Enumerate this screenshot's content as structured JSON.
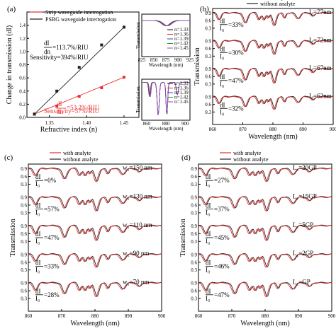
{
  "chart_data": [
    {
      "panel": "(a)",
      "type": "scatter",
      "xlabel": "Refractive index (n)",
      "ylabel": "Change in transmission (dI)",
      "xlim": [
        1.32,
        1.47
      ],
      "ylim": [
        0,
        1.6
      ],
      "xticks": [
        "1.35",
        "1.40",
        "1.45"
      ],
      "yticks": [
        "0.0",
        "0.2",
        "0.4",
        "0.6",
        "0.8",
        "1.0",
        "1.2",
        "1.4"
      ],
      "series": [
        {
          "name": "Strip waveguide interrogation",
          "color": "#e83030",
          "x": [
            1.33,
            1.36,
            1.39,
            1.42,
            1.45
          ],
          "y": [
            0.05,
            0.17,
            0.32,
            0.45,
            0.61
          ]
        },
        {
          "name": "PSBG waveguide interrogation",
          "color": "#222222",
          "x": [
            1.33,
            1.36,
            1.39,
            1.42,
            1.45
          ],
          "y": [
            0.05,
            0.4,
            0.76,
            1.1,
            1.37
          ]
        }
      ],
      "annotations": [
        {
          "text": "dI",
          "color": "#000000"
        },
        {
          "text": "dn",
          "color": "#000000"
        },
        {
          "text": "=113.7%/RIU",
          "color": "#000000"
        },
        {
          "text": "Sensitivity=394%/RIU",
          "color": "#000000"
        },
        {
          "text": "dI",
          "color": "#e83030"
        },
        {
          "text": "dn",
          "color": "#e83030"
        },
        {
          "text": "=53.2%/RIU",
          "color": "#e83030"
        },
        {
          "text": "Sensitivity=57%/RIU",
          "color": "#e83030"
        }
      ],
      "insets": [
        {
          "ylabel": "Transmission",
          "xlabel": "Wavelength (nm)",
          "xticks": [
            "825",
            "850",
            "875",
            "900",
            "925"
          ],
          "legend": [
            "n=1.33",
            "n=1.36",
            "n=1.39",
            "n=1.42",
            "n=1.45"
          ],
          "legend_colors": [
            "#111111",
            "#e83030",
            "#3040d0",
            "#2aa02a",
            "#a040c0"
          ]
        },
        {
          "ylabel": "Transmission",
          "xlabel": "Wavelength (nm)",
          "xticks": [
            "860",
            "880",
            "900"
          ],
          "legend": [
            "n=1.33",
            "n=1.36",
            "n=1.39",
            "n=1.42",
            "n=1.45"
          ],
          "legend_colors": [
            "#111111",
            "#e83030",
            "#3040d0",
            "#2aa02a",
            "#a040c0"
          ]
        }
      ]
    },
    {
      "panel": "(b)",
      "type": "line",
      "xlabel": "Wavelength (nm)",
      "ylabel": "Transmission",
      "xlim": [
        860,
        900
      ],
      "xticks": [
        "860",
        "870",
        "880",
        "890",
        "900"
      ],
      "yticks": [
        "0.9",
        "0.6",
        "0.3"
      ],
      "legend": [
        "with analyte",
        "without analyte"
      ],
      "legend_colors": [
        "#e83030",
        "#222222"
      ],
      "sub_labels": [
        "Iₑ=77nm",
        "Iₑ=72nm",
        "Iₑ=67nm",
        "Iₑ=62nm"
      ],
      "sub_labels_raw": [
        {
          "sym": "I",
          "sub": "d",
          "val": "=77nm"
        },
        {
          "sym": "I",
          "sub": "d",
          "val": "=72nm"
        },
        {
          "sym": "I",
          "sub": "d",
          "val": "=67nm"
        },
        {
          "sym": "I",
          "sub": "d",
          "val": "=62nm"
        }
      ],
      "ratios": [
        "=33%",
        "=30%",
        "=47%",
        "=32%"
      ],
      "ratio_num": "dI",
      "ratio_den": "I₀"
    },
    {
      "panel": "(c)",
      "type": "line",
      "xlabel": "Wavelength (nm)",
      "ylabel": "Transmission",
      "xlim": [
        860,
        900
      ],
      "xticks": [
        "860",
        "870",
        "880",
        "890",
        "900"
      ],
      "yticks": [
        "0.9",
        "0.6",
        "0.3"
      ],
      "legend": [
        "with analyte",
        "without analyte"
      ],
      "legend_colors": [
        "#e83030",
        "#222222"
      ],
      "sub_labels_raw": [
        {
          "sym": "w",
          "sub": "1",
          "val": "=150 nm"
        },
        {
          "sym": "w",
          "sub": "1",
          "val": "=130 nm"
        },
        {
          "sym": "w",
          "sub": "1",
          "val": "=110 nm"
        },
        {
          "sym": "w",
          "sub": "1",
          "val": "=90 nm"
        },
        {
          "sym": "w",
          "sub": "1",
          "val": "=70 nm"
        }
      ],
      "ratios": [
        "=0%",
        "=57%",
        "=47%",
        "=33%",
        "=28%"
      ],
      "ratio_num": "dI",
      "ratio_den": "I₀"
    },
    {
      "panel": "(d)",
      "type": "line",
      "xlabel": "Wavelength (nm)",
      "ylabel": "Transmission",
      "xlim": [
        860,
        900
      ],
      "xticks": [
        "860",
        "870",
        "880",
        "890",
        "900"
      ],
      "yticks": [
        "0.9",
        "0.6",
        "0.3"
      ],
      "legend": [
        "with analyte",
        "without analyte"
      ],
      "legend_colors": [
        "#e83030",
        "#222222"
      ],
      "sub_labels_raw": [
        {
          "sym": "L",
          "sub": "c",
          "val": "=30GP"
        },
        {
          "sym": "L",
          "sub": "c",
          "val": "=15GP"
        },
        {
          "sym": "L",
          "sub": "c",
          "val": "=5GP"
        },
        {
          "sym": "L",
          "sub": "c",
          "val": "=2GP"
        },
        {
          "sym": "L",
          "sub": "c",
          "val": "=GP"
        }
      ],
      "ratios": [
        "=27%",
        "=37%",
        "=45%",
        "=46%",
        "=47%"
      ],
      "ratio_num": "dI",
      "ratio_den": "I₀"
    }
  ]
}
